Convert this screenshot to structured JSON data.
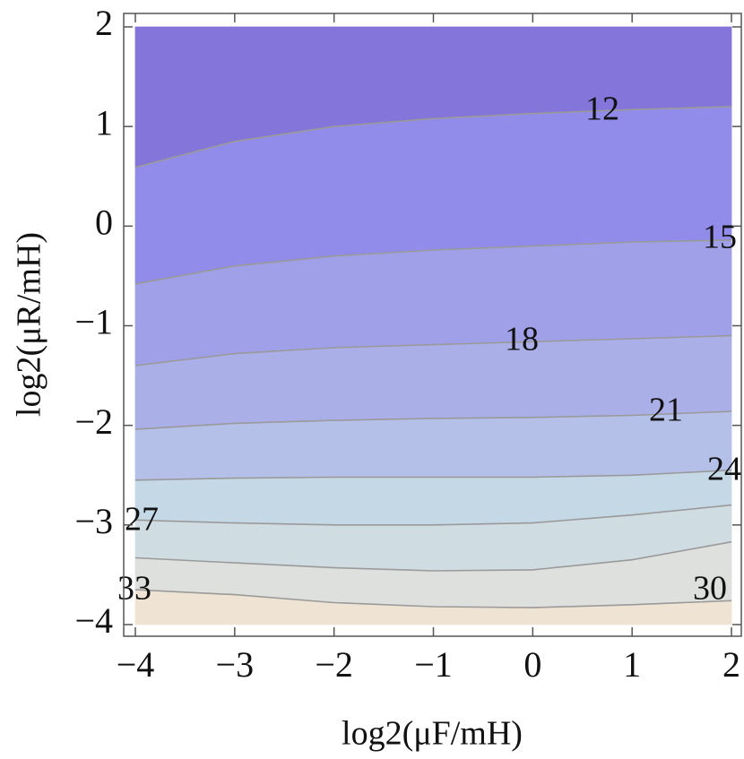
{
  "chart_data": {
    "type": "contour",
    "xlabel": "log2(μF/mH)",
    "ylabel": "log2(μR/mH)",
    "xlim": [
      -4,
      2
    ],
    "ylim": [
      -4,
      2
    ],
    "xticks": [
      {
        "value": -4,
        "label": "−4"
      },
      {
        "value": -3,
        "label": "−3"
      },
      {
        "value": -2,
        "label": "−2"
      },
      {
        "value": -1,
        "label": "−1"
      },
      0,
      1,
      2
    ],
    "yticks": [
      {
        "value": -4,
        "label": "−4"
      },
      {
        "value": -3,
        "label": "−3"
      },
      {
        "value": -2,
        "label": "−2"
      },
      {
        "value": -1,
        "label": "−1"
      },
      0,
      1,
      2
    ],
    "x": [
      -4,
      -3,
      -2,
      -1,
      0,
      1,
      2
    ],
    "line_color": "#9a9a9a",
    "fills": [
      "#8475db",
      "#918be9",
      "#9fa0e8",
      "#abafe8",
      "#b4c0e8",
      "#c4d8e6",
      "#cfdce2",
      "#dde0dd",
      "#efe4d3"
    ],
    "contours": [
      {
        "level": 12,
        "y": [
          0.59,
          0.85,
          1.0,
          1.08,
          1.13,
          1.17,
          1.2
        ]
      },
      {
        "level": 15,
        "y": [
          -0.58,
          -0.4,
          -0.3,
          -0.24,
          -0.2,
          -0.16,
          -0.14
        ]
      },
      {
        "level": 18,
        "y": [
          -1.4,
          -1.28,
          -1.22,
          -1.19,
          -1.16,
          -1.13,
          -1.1
        ]
      },
      {
        "level": 21,
        "y": [
          -2.04,
          -1.98,
          -1.95,
          -1.93,
          -1.92,
          -1.9,
          -1.86
        ]
      },
      {
        "level": 24,
        "y": [
          -2.55,
          -2.53,
          -2.52,
          -2.52,
          -2.52,
          -2.5,
          -2.45
        ]
      },
      {
        "level": 27,
        "y": [
          -2.95,
          -2.98,
          -3.0,
          -3.0,
          -2.98,
          -2.9,
          -2.8
        ]
      },
      {
        "level": 30,
        "y": [
          -3.33,
          -3.38,
          -3.43,
          -3.46,
          -3.45,
          -3.35,
          -3.17
        ]
      },
      {
        "level": 33,
        "y": [
          -3.65,
          -3.7,
          -3.78,
          -3.82,
          -3.83,
          -3.8,
          -3.76
        ]
      }
    ]
  }
}
